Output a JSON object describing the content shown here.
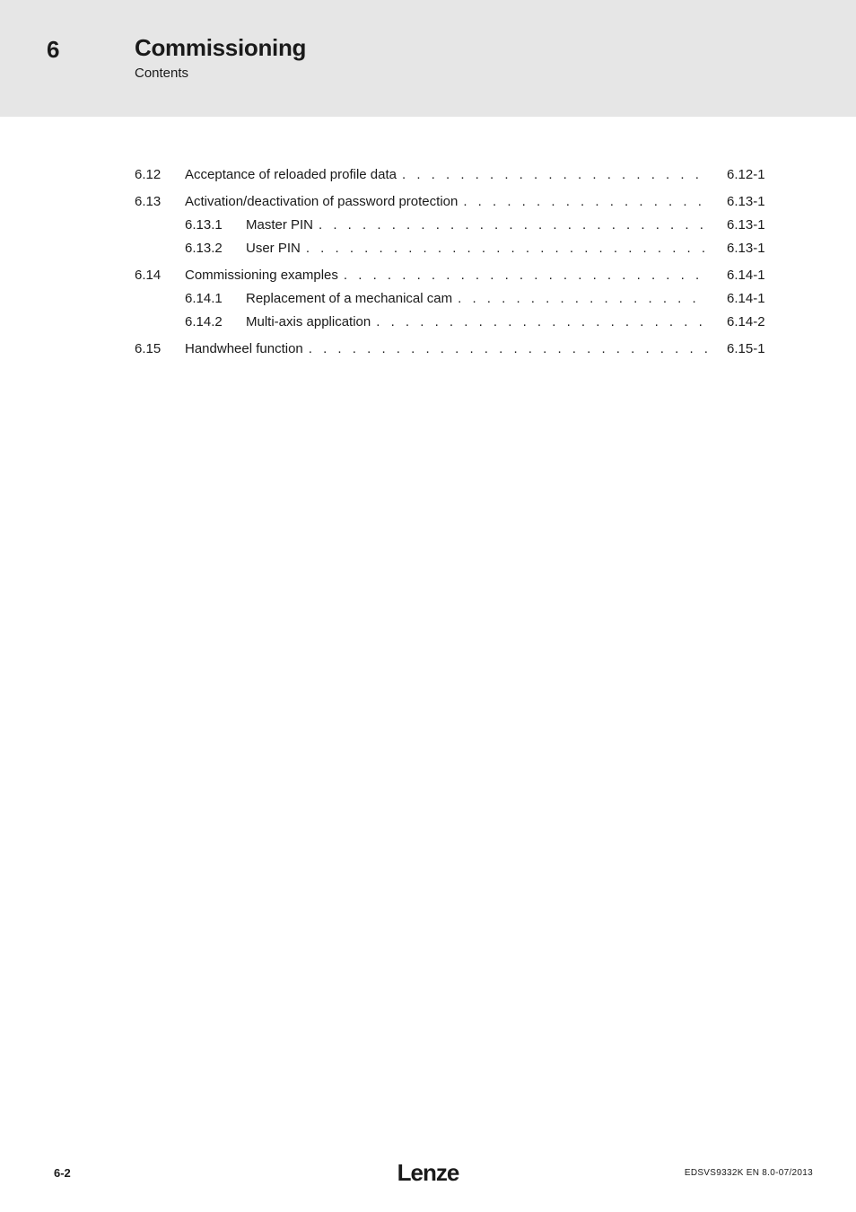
{
  "header": {
    "chapter_number": "6",
    "title": "Commissioning",
    "subtitle": "Contents"
  },
  "toc": [
    {
      "level": 1,
      "num": "6.12",
      "text": "Acceptance of reloaded profile data",
      "page": "6.12-1"
    },
    {
      "level": 1,
      "num": "6.13",
      "text": "Activation/deactivation of password protection",
      "page": "6.13-1"
    },
    {
      "level": 2,
      "num": "6.13.1",
      "text": "Master PIN",
      "page": "6.13-1"
    },
    {
      "level": 2,
      "num": "6.13.2",
      "text": "User PIN",
      "page": "6.13-1"
    },
    {
      "level": 1,
      "num": "6.14",
      "text": "Commissioning examples",
      "page": "6.14-1"
    },
    {
      "level": 2,
      "num": "6.14.1",
      "text": "Replacement of a mechanical cam",
      "page": "6.14-1"
    },
    {
      "level": 2,
      "num": "6.14.2",
      "text": "Multi-axis application",
      "page": "6.14-2"
    },
    {
      "level": 1,
      "num": "6.15",
      "text": "Handwheel function",
      "page": "6.15-1"
    }
  ],
  "footer": {
    "page_number": "6-2",
    "logo": "Lenze",
    "doc_id": "EDSVS9332K EN 8.0-07/2013"
  }
}
